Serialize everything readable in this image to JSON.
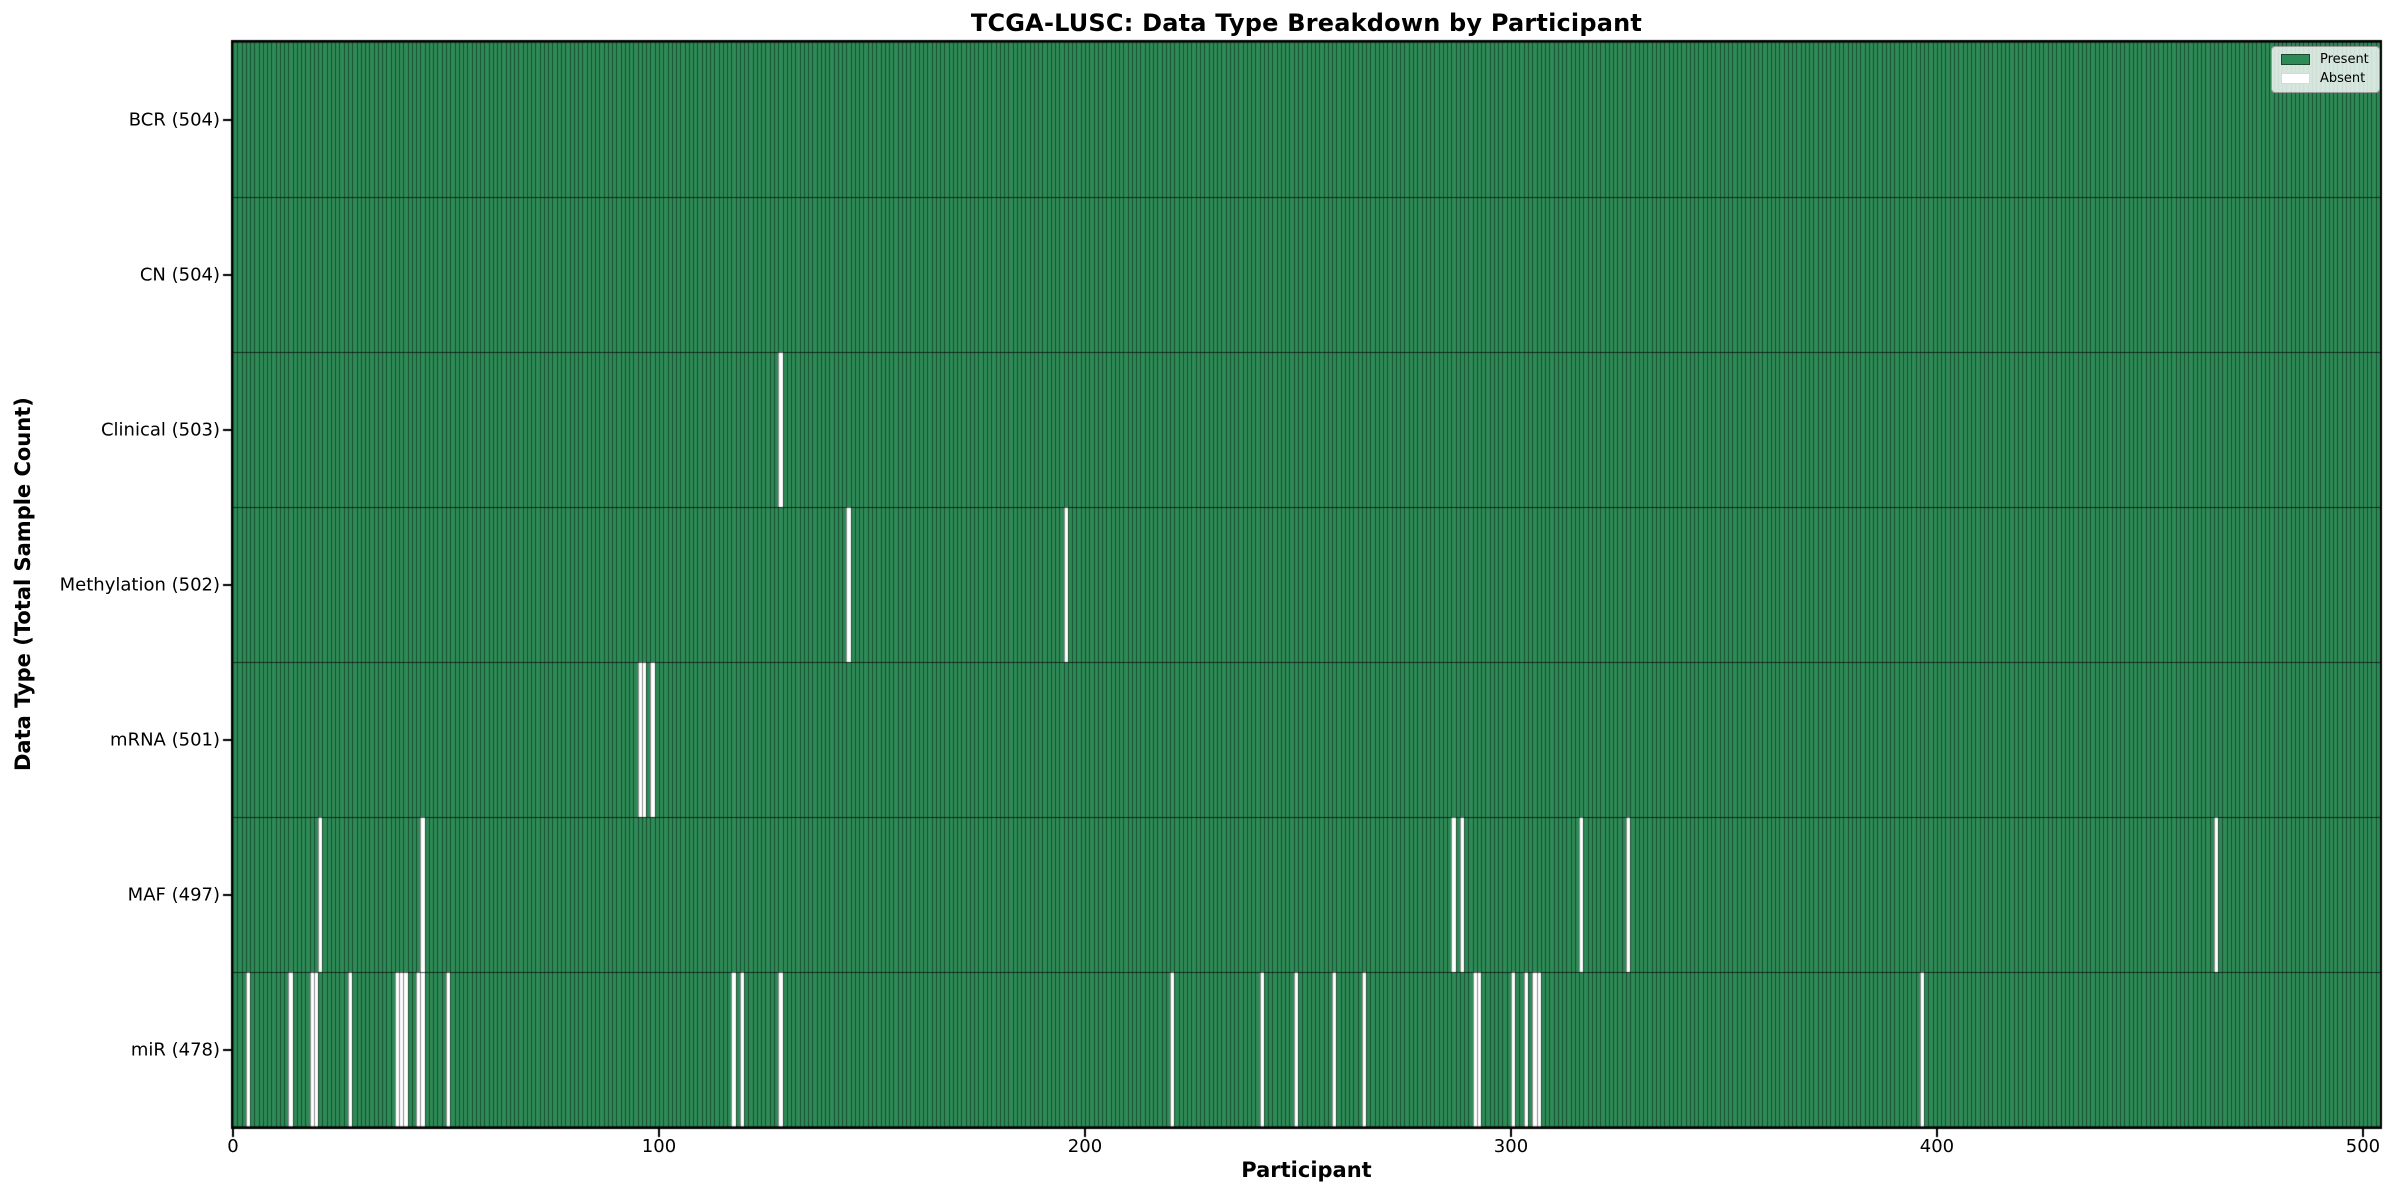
{
  "title": "TCGA-LUSC: Data Type Breakdown by Participant",
  "chart_data": {
    "type": "heatmap",
    "title": "TCGA-LUSC: Data Type Breakdown by Participant",
    "xlabel": "Participant",
    "ylabel": "Data Type (Total Sample Count)",
    "x_ticks": [
      0,
      100,
      200,
      300,
      400,
      500
    ],
    "x_range": [
      0,
      504
    ],
    "n_participants": 504,
    "grid": false,
    "legend_position": "upper right",
    "legend": [
      {
        "label": "Present",
        "color": "#2e8b57"
      },
      {
        "label": "Absent",
        "color": "#ffffff"
      }
    ],
    "colors": {
      "present": "#2e8b57",
      "absent": "#ffffff",
      "bar_edge": "rgba(0,0,0,0.45)",
      "row_divider": "rgba(0,0,0,0.65)",
      "spine": "#000000"
    },
    "rows": [
      {
        "label": "BCR (504)",
        "data_type": "BCR",
        "present_count": 504,
        "absent": []
      },
      {
        "label": "CN (504)",
        "data_type": "CN",
        "present_count": 504,
        "absent": []
      },
      {
        "label": "Clinical (503)",
        "data_type": "Clinical",
        "present_count": 503,
        "absent": [
          128
        ]
      },
      {
        "label": "Methylation (502)",
        "data_type": "Methylation",
        "present_count": 502,
        "absent": [
          144,
          195
        ]
      },
      {
        "label": "mRNA (501)",
        "data_type": "mRNA",
        "present_count": 501,
        "absent": [
          95,
          96,
          98
        ]
      },
      {
        "label": "MAF (497)",
        "data_type": "MAF",
        "present_count": 497,
        "absent": [
          20,
          44,
          286,
          288,
          316,
          327,
          465
        ]
      },
      {
        "label": "miR (478)",
        "data_type": "miR",
        "present_count": 478,
        "absent": [
          3,
          13,
          18,
          19,
          27,
          38,
          39,
          40,
          43,
          44,
          50,
          117,
          119,
          128,
          220,
          241,
          249,
          258,
          265,
          291,
          292,
          300,
          303,
          305,
          306,
          396
        ]
      }
    ]
  }
}
